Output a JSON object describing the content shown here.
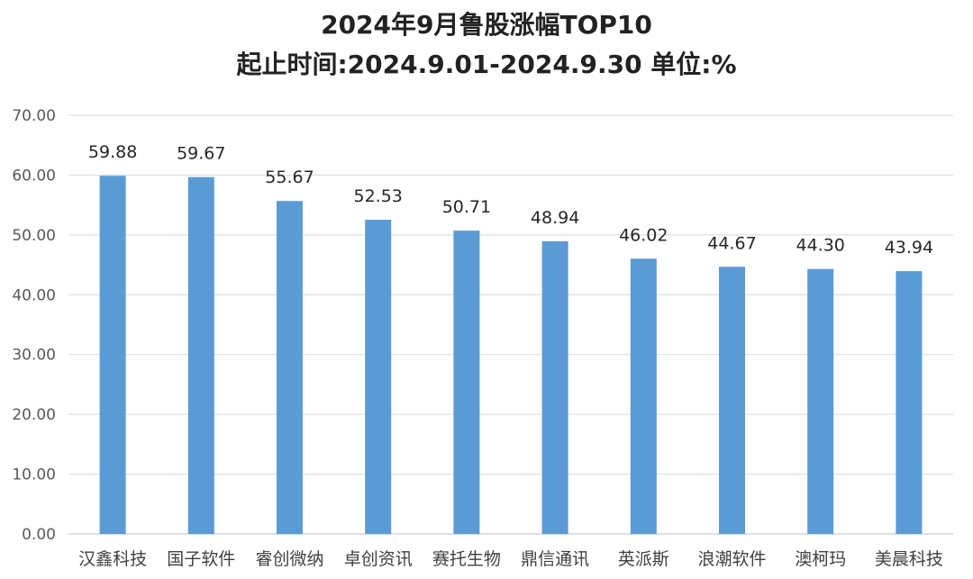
{
  "chart_data": {
    "type": "bar",
    "title": "2024年9月鲁股涨幅TOP10",
    "subtitle": "起止时间:2024.9.01-2024.9.30 单位:%",
    "categories": [
      "汉鑫科技",
      "国子软件",
      "睿创微纳",
      "卓创资讯",
      "赛托生物",
      "鼎信通讯",
      "英派斯",
      "浪潮软件",
      "澳柯玛",
      "美晨科技"
    ],
    "values": [
      59.88,
      59.67,
      55.67,
      52.53,
      50.71,
      48.94,
      46.02,
      44.67,
      44.3,
      43.94
    ],
    "value_labels": [
      "59.88",
      "59.67",
      "55.67",
      "52.53",
      "50.71",
      "48.94",
      "46.02",
      "44.67",
      "44.30",
      "43.94"
    ],
    "y_ticks": [
      "0.00",
      "10.00",
      "20.00",
      "30.00",
      "40.00",
      "50.00",
      "60.00",
      "70.00"
    ],
    "ylim": [
      0,
      70
    ],
    "xlabel": "",
    "ylabel": "",
    "grid": true,
    "legend": "none",
    "bar_color": "#5b9bd5",
    "grid_color": "#d9d9d9"
  }
}
